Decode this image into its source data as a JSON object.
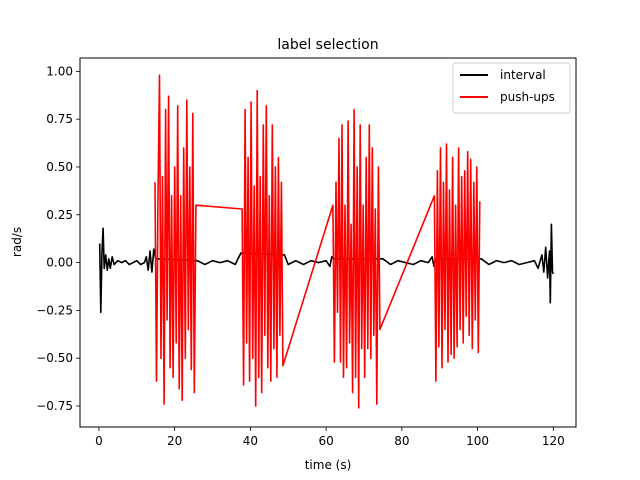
{
  "chart_data": {
    "type": "line",
    "title": "label selection",
    "xlabel": "time (s)",
    "ylabel": "rad/s",
    "xlim": [
      -5,
      126
    ],
    "ylim": [
      -0.86,
      1.07
    ],
    "xticks": [
      0,
      20,
      40,
      60,
      80,
      100,
      120
    ],
    "xtick_labels": [
      "0",
      "20",
      "40",
      "60",
      "80",
      "100",
      "120"
    ],
    "yticks": [
      -0.75,
      -0.5,
      -0.25,
      0.0,
      0.25,
      0.5,
      0.75,
      1.0
    ],
    "ytick_labels": [
      "−0.75",
      "−0.50",
      "−0.25",
      "0.00",
      "0.25",
      "0.50",
      "0.75",
      "1.00"
    ],
    "grid": false,
    "legend_position": "top-right",
    "series": [
      {
        "name": "interval",
        "color": "#000000",
        "x": [
          0.2,
          0.5,
          0.8,
          1.1,
          1.4,
          1.8,
          2.2,
          2.6,
          3.0,
          3.5,
          4,
          5,
          6,
          7,
          8,
          9,
          10,
          11,
          12,
          12.5,
          13,
          13.5,
          14,
          14.5,
          15,
          26,
          28,
          30,
          32,
          34,
          36,
          37.5,
          49,
          50,
          52,
          54,
          56,
          58,
          60,
          61,
          61.5,
          62,
          75,
          77,
          79,
          81,
          83,
          85,
          87,
          88,
          88.5,
          89,
          101,
          103,
          105,
          107,
          109,
          111,
          113,
          115,
          116,
          117,
          117.5,
          118,
          118.5,
          119,
          119.2,
          119.5,
          119.8,
          120
        ],
        "y": [
          0.1,
          -0.26,
          0.06,
          0.18,
          -0.03,
          0.04,
          -0.04,
          0.02,
          -0.03,
          0.03,
          -0.01,
          0.01,
          0.0,
          0.01,
          -0.01,
          0.0,
          0.01,
          -0.01,
          0.0,
          0.03,
          -0.04,
          0.06,
          -0.05,
          0.07,
          0.02,
          0.01,
          -0.01,
          0.01,
          0.0,
          0.01,
          -0.01,
          0.05,
          0.04,
          -0.01,
          0.01,
          -0.01,
          0.01,
          0.0,
          0.01,
          -0.02,
          0.03,
          0.02,
          0.02,
          -0.01,
          0.01,
          0.0,
          -0.01,
          0.01,
          0.0,
          0.03,
          -0.02,
          0.02,
          0.02,
          -0.01,
          0.01,
          0.0,
          0.01,
          -0.01,
          0.0,
          0.01,
          -0.03,
          0.04,
          -0.05,
          0.08,
          -0.08,
          0.06,
          -0.21,
          0.2,
          -0.05,
          -0.06
        ]
      },
      {
        "name": "push-ups",
        "color": "#ff0000",
        "x": [
          14.8,
          15.2,
          15.6,
          16.0,
          16.4,
          16.8,
          17.2,
          17.6,
          18.0,
          18.4,
          18.8,
          19.2,
          19.6,
          20.0,
          20.4,
          20.8,
          21.2,
          21.6,
          22.0,
          22.4,
          22.8,
          23.2,
          23.6,
          24.0,
          24.4,
          24.8,
          25.2,
          25.6,
          37.8,
          38.2,
          38.6,
          39.0,
          39.4,
          39.8,
          40.2,
          40.6,
          41.0,
          41.4,
          41.8,
          42.2,
          42.6,
          43.0,
          43.4,
          43.8,
          44.2,
          44.6,
          45.0,
          45.4,
          45.8,
          46.2,
          46.6,
          47.0,
          47.4,
          47.8,
          48.2,
          48.6,
          61.8,
          62.2,
          62.6,
          63.0,
          63.4,
          63.8,
          64.2,
          64.6,
          65.0,
          65.4,
          65.8,
          66.2,
          66.6,
          67.0,
          67.4,
          67.8,
          68.2,
          68.6,
          69.0,
          69.4,
          69.8,
          70.2,
          70.6,
          71.0,
          71.4,
          71.8,
          72.2,
          72.6,
          73.0,
          73.4,
          73.8,
          74.2,
          88.6,
          89.0,
          89.4,
          89.8,
          90.2,
          90.6,
          91.0,
          91.4,
          91.8,
          92.2,
          92.6,
          93.0,
          93.4,
          93.8,
          94.2,
          94.6,
          95.0,
          95.4,
          95.8,
          96.2,
          96.6,
          97.0,
          97.4,
          97.8,
          98.2,
          98.6,
          99.0,
          99.4,
          99.8,
          100.2,
          100.6
        ],
        "y": [
          0.42,
          -0.62,
          0.35,
          0.98,
          -0.5,
          0.45,
          -0.74,
          0.8,
          -0.3,
          0.87,
          -0.55,
          0.35,
          -0.6,
          0.5,
          -0.42,
          0.82,
          -0.66,
          0.35,
          -0.72,
          0.6,
          -0.5,
          0.85,
          -0.35,
          0.5,
          -0.56,
          0.78,
          -0.68,
          0.3,
          0.28,
          -0.64,
          0.8,
          -0.42,
          0.55,
          -0.62,
          0.84,
          -0.5,
          0.4,
          -0.75,
          0.9,
          -0.6,
          0.45,
          -0.68,
          0.72,
          -0.38,
          0.82,
          -0.55,
          0.35,
          -0.62,
          0.72,
          -0.45,
          0.5,
          -0.6,
          0.55,
          -0.38,
          0.42,
          -0.54,
          0.3,
          -0.52,
          0.42,
          -0.26,
          0.65,
          -0.52,
          0.72,
          -0.6,
          0.3,
          -0.55,
          0.74,
          -0.42,
          0.2,
          -0.68,
          0.8,
          -0.6,
          0.5,
          -0.76,
          0.72,
          -0.45,
          0.3,
          -0.6,
          0.55,
          -0.45,
          0.72,
          -0.5,
          0.6,
          -0.38,
          0.28,
          -0.74,
          0.5,
          -0.35,
          0.35,
          -0.62,
          0.48,
          -0.44,
          0.6,
          -0.55,
          0.42,
          -0.35,
          0.62,
          -0.52,
          0.38,
          -0.48,
          0.55,
          -0.5,
          0.3,
          -0.44,
          0.6,
          -0.35,
          0.45,
          -0.42,
          0.48,
          -0.28,
          0.58,
          -0.38,
          0.54,
          -0.45,
          0.42,
          -0.3,
          0.5,
          -0.47,
          0.32
        ]
      }
    ]
  }
}
